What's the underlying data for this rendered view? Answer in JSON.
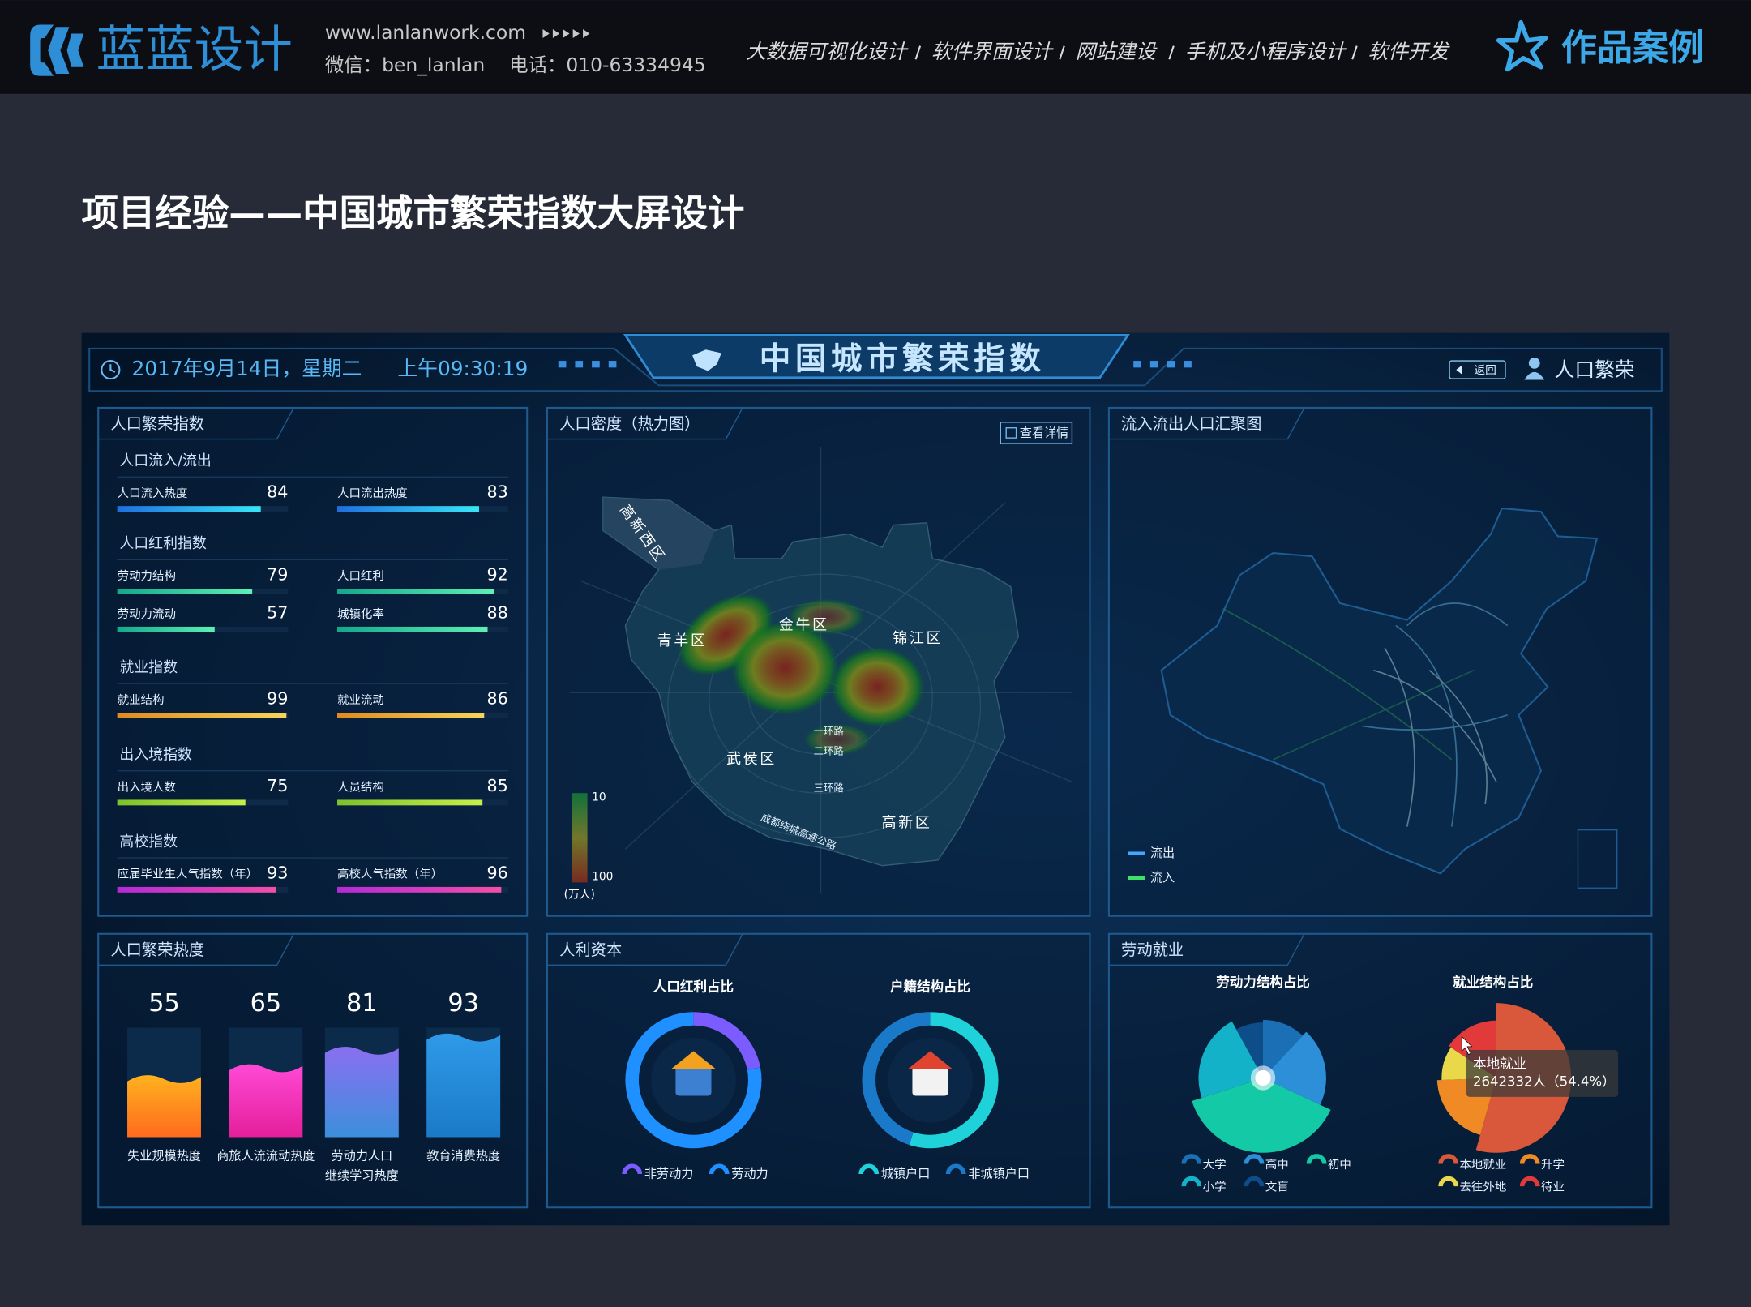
{
  "header": {
    "brand": "蓝蓝设计",
    "url": "www.lanlanwork.com",
    "wechat": "微信：ben_lanlan",
    "phone": "电话：010-63334945",
    "nav": [
      "大数据可视化设计",
      "软件界面设计",
      "网站建设",
      "手机及小程序设计",
      "软件开发"
    ],
    "cases": "作品案例"
  },
  "page_title": "项目经验——中国城市繁荣指数大屏设计",
  "dashboard": {
    "date": "2017年9月14日，星期二",
    "time": "上午09:30:19",
    "title": "中国城市繁荣指数",
    "back": "返回",
    "user": "人口繁荣",
    "index_panel": {
      "title": "人口繁荣指数",
      "max": 100,
      "groups": [
        {
          "name": "人口流入/流出",
          "colors": [
            "#1e6fe0",
            "#38e6f5"
          ],
          "items": [
            {
              "label": "人口流入热度",
              "value": 84
            },
            {
              "label": "人口流出热度",
              "value": 83
            }
          ]
        },
        {
          "name": "人口红利指数",
          "colors": [
            "#14a88c",
            "#5ef0b4"
          ],
          "items": [
            {
              "label": "劳动力结构",
              "value": 79
            },
            {
              "label": "人口红利",
              "value": 92
            },
            {
              "label": "劳动力流动",
              "value": 57
            },
            {
              "label": "城镇化率",
              "value": 88
            }
          ]
        },
        {
          "name": "就业指数",
          "colors": [
            "#e08a1e",
            "#f7d45a"
          ],
          "items": [
            {
              "label": "就业结构",
              "value": 99
            },
            {
              "label": "就业流动",
              "value": 86
            }
          ]
        },
        {
          "name": "出入境指数",
          "colors": [
            "#7cc22a",
            "#c6ef4a"
          ],
          "items": [
            {
              "label": "出入境人数",
              "value": 75
            },
            {
              "label": "人员结构",
              "value": 85
            }
          ]
        },
        {
          "name": "高校指数",
          "colors": [
            "#b52ad6",
            "#f24fa8"
          ],
          "items": [
            {
              "label": "应届毕业生人气指数（年）",
              "value": 93
            },
            {
              "label": "高校人气指数（年）",
              "value": 96
            }
          ]
        }
      ]
    },
    "density_panel": {
      "title": "人口密度（热力图）",
      "detail": "查看详情",
      "districts": [
        "高新西区",
        "青羊区",
        "金牛区",
        "锦江区",
        "武侯区",
        "高新区"
      ],
      "roads": [
        "一环路",
        "二环路",
        "三环路",
        "成都绕城高速公路"
      ],
      "legend": {
        "min": 10,
        "max": 100,
        "unit": "(万人)"
      }
    },
    "flow_panel": {
      "title": "流入流出人口汇聚图",
      "legend": [
        {
          "name": "流出",
          "color": "#3fa9ff"
        },
        {
          "name": "流入",
          "color": "#3ee06a"
        }
      ]
    },
    "heat_panel": {
      "title": "人口繁荣热度",
      "max": 100,
      "items": [
        {
          "label": [
            "失业规模热度"
          ],
          "value": 55,
          "colors": [
            "#ffb21e",
            "#ff6a1e"
          ]
        },
        {
          "label": [
            "商旅人流流动热度"
          ],
          "value": 65,
          "colors": [
            "#ff49d6",
            "#e41f9a"
          ]
        },
        {
          "label": [
            "劳动力人口",
            "继续学习热度"
          ],
          "value": 81,
          "colors": [
            "#8a6ff0",
            "#3c8fdc"
          ]
        },
        {
          "label": [
            "教育消费热度"
          ],
          "value": 93,
          "colors": [
            "#2f9ae8",
            "#1a7ac8"
          ]
        }
      ]
    },
    "capital_panel": {
      "title": "人利资本",
      "charts": [
        {
          "title": "人口红利占比",
          "series": [
            {
              "name": "非劳动力",
              "color": "#7b5cff",
              "value": 22
            },
            {
              "name": "劳动力",
              "color": "#1e90ff",
              "value": 78
            }
          ]
        },
        {
          "title": "户籍结构占比",
          "series": [
            {
              "name": "城镇户口",
              "color": "#1fd1d9",
              "value": 55
            },
            {
              "name": "非城镇户口",
              "color": "#1a79c9",
              "value": 45
            }
          ]
        }
      ]
    },
    "labor_panel": {
      "title": "劳动就业",
      "charts": [
        {
          "title": "劳动力结构占比",
          "series": [
            {
              "name": "大学",
              "color": "#1a6fb5",
              "value": 12
            },
            {
              "name": "高中",
              "color": "#2d8fd8",
              "value": 20
            },
            {
              "name": "初中",
              "color": "#14c9a5",
              "value": 38
            },
            {
              "name": "小学",
              "color": "#13b2c9",
              "value": 22
            },
            {
              "name": "文盲",
              "color": "#0d4d8a",
              "value": 8
            }
          ]
        },
        {
          "title": "就业结构占比",
          "series": [
            {
              "name": "本地就业",
              "color": "#d9573a",
              "value": 54.4
            },
            {
              "name": "升学",
              "color": "#f08a24",
              "value": 20
            },
            {
              "name": "去往外地",
              "color": "#e8d84a",
              "value": 10
            },
            {
              "name": "待业",
              "color": "#e23a3a",
              "value": 15.6
            }
          ],
          "tooltip": {
            "name": "本地就业",
            "text": "2642332人（54.4%）"
          }
        }
      ]
    }
  }
}
